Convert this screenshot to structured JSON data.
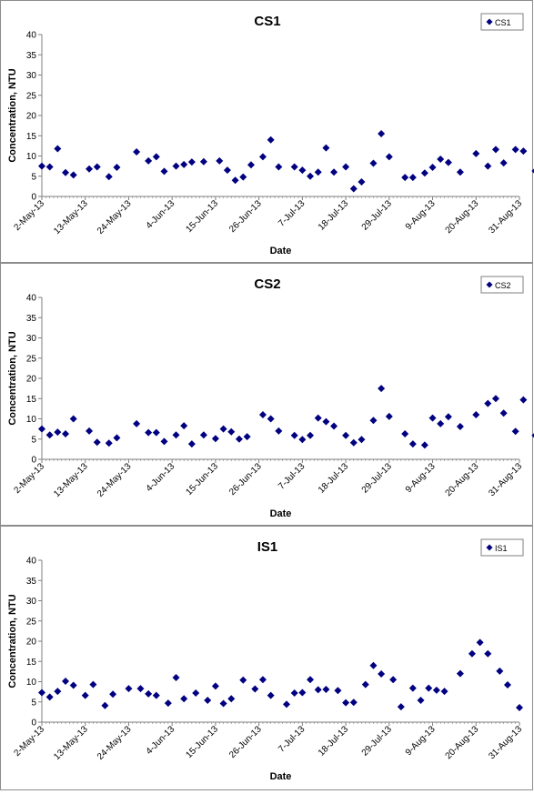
{
  "colors": {
    "marker": "#000080",
    "axis": "#7f7f7f",
    "text": "#000000",
    "frame": "#8c8c8c"
  },
  "chart_data": [
    {
      "type": "scatter",
      "title": "CS1",
      "xlabel": "Date",
      "ylabel": "Concentration, NTU",
      "ylim": [
        0,
        40
      ],
      "yticks": [
        "0",
        "5",
        "10",
        "15",
        "20",
        "25",
        "30",
        "35",
        "40"
      ],
      "xlim": [
        "2013-05-02",
        "2013-08-31"
      ],
      "xticks": [
        "2-May-13",
        "13-May-13",
        "24-May-13",
        "4-Jun-13",
        "15-Jun-13",
        "26-Jun-13",
        "7-Jul-13",
        "18-Jul-13",
        "29-Jul-13",
        "9-Aug-13",
        "20-Aug-13",
        "31-Aug-13"
      ],
      "grid": false,
      "legend_position": "top-right",
      "series": [
        {
          "name": "CS1",
          "points": [
            [
              "2013-05-02",
              7.5
            ],
            [
              "2013-05-04",
              7.3
            ],
            [
              "2013-05-06",
              11.8
            ],
            [
              "2013-05-08",
              5.9
            ],
            [
              "2013-05-10",
              5.3
            ],
            [
              "2013-05-14",
              6.8
            ],
            [
              "2013-05-16",
              7.3
            ],
            [
              "2013-05-19",
              4.9
            ],
            [
              "2013-05-21",
              7.2
            ],
            [
              "2013-05-26",
              11.0
            ],
            [
              "2013-05-29",
              8.8
            ],
            [
              "2013-05-31",
              9.8
            ],
            [
              "2013-06-02",
              6.2
            ],
            [
              "2013-06-05",
              7.5
            ],
            [
              "2013-06-07",
              7.9
            ],
            [
              "2013-06-09",
              8.5
            ],
            [
              "2013-06-12",
              8.6
            ],
            [
              "2013-06-16",
              8.8
            ],
            [
              "2013-06-18",
              6.5
            ],
            [
              "2013-06-20",
              4.0
            ],
            [
              "2013-06-22",
              4.8
            ],
            [
              "2013-06-24",
              7.8
            ],
            [
              "2013-06-27",
              9.8
            ],
            [
              "2013-06-29",
              14.0
            ],
            [
              "2013-07-01",
              7.3
            ],
            [
              "2013-07-05",
              7.3
            ],
            [
              "2013-07-07",
              6.5
            ],
            [
              "2013-07-09",
              5.0
            ],
            [
              "2013-07-11",
              6.0
            ],
            [
              "2013-07-13",
              12.0
            ],
            [
              "2013-07-15",
              6.0
            ],
            [
              "2013-07-18",
              7.3
            ],
            [
              "2013-07-20",
              1.9
            ],
            [
              "2013-07-22",
              3.6
            ],
            [
              "2013-07-25",
              8.2
            ],
            [
              "2013-07-27",
              15.5
            ],
            [
              "2013-07-29",
              9.8
            ],
            [
              "2013-08-02",
              4.7
            ],
            [
              "2013-08-04",
              4.7
            ],
            [
              "2013-08-07",
              5.8
            ],
            [
              "2013-08-09",
              7.2
            ],
            [
              "2013-08-11",
              9.2
            ],
            [
              "2013-08-13",
              8.4
            ],
            [
              "2013-08-16",
              6.0
            ],
            [
              "2013-08-20",
              10.6
            ],
            [
              "2013-08-23",
              7.5
            ],
            [
              "2013-08-25",
              11.6
            ],
            [
              "2013-08-27",
              8.3
            ],
            [
              "2013-08-30",
              11.6
            ],
            [
              "2013-09-01",
              11.2
            ],
            [
              "2013-09-04",
              6.3
            ]
          ]
        }
      ]
    },
    {
      "type": "scatter",
      "title": "CS2",
      "xlabel": "Date",
      "ylabel": "Concentration, NTU",
      "ylim": [
        0,
        40
      ],
      "yticks": [
        "0",
        "5",
        "10",
        "15",
        "20",
        "25",
        "30",
        "35",
        "40"
      ],
      "xlim": [
        "2013-05-02",
        "2013-08-31"
      ],
      "xticks": [
        "2-May-13",
        "13-May-13",
        "24-May-13",
        "4-Jun-13",
        "15-Jun-13",
        "26-Jun-13",
        "7-Jul-13",
        "18-Jul-13",
        "29-Jul-13",
        "9-Aug-13",
        "20-Aug-13",
        "31-Aug-13"
      ],
      "grid": false,
      "legend_position": "top-right",
      "series": [
        {
          "name": "CS2",
          "points": [
            [
              "2013-05-02",
              7.5
            ],
            [
              "2013-05-04",
              6.0
            ],
            [
              "2013-05-06",
              6.7
            ],
            [
              "2013-05-08",
              6.3
            ],
            [
              "2013-05-10",
              10.0
            ],
            [
              "2013-05-14",
              7.0
            ],
            [
              "2013-05-16",
              4.2
            ],
            [
              "2013-05-19",
              4.0
            ],
            [
              "2013-05-21",
              5.3
            ],
            [
              "2013-05-26",
              8.8
            ],
            [
              "2013-05-29",
              6.6
            ],
            [
              "2013-05-31",
              6.6
            ],
            [
              "2013-06-02",
              4.4
            ],
            [
              "2013-06-05",
              6.0
            ],
            [
              "2013-06-07",
              8.3
            ],
            [
              "2013-06-09",
              3.8
            ],
            [
              "2013-06-12",
              6.0
            ],
            [
              "2013-06-15",
              5.1
            ],
            [
              "2013-06-17",
              7.5
            ],
            [
              "2013-06-19",
              6.8
            ],
            [
              "2013-06-21",
              5.0
            ],
            [
              "2013-06-23",
              5.6
            ],
            [
              "2013-06-27",
              11.0
            ],
            [
              "2013-06-29",
              10.0
            ],
            [
              "2013-07-01",
              7.0
            ],
            [
              "2013-07-05",
              5.9
            ],
            [
              "2013-07-07",
              4.9
            ],
            [
              "2013-07-09",
              5.9
            ],
            [
              "2013-07-11",
              10.2
            ],
            [
              "2013-07-13",
              9.3
            ],
            [
              "2013-07-15",
              8.2
            ],
            [
              "2013-07-18",
              5.9
            ],
            [
              "2013-07-20",
              4.1
            ],
            [
              "2013-07-22",
              4.9
            ],
            [
              "2013-07-25",
              9.6
            ],
            [
              "2013-07-27",
              17.5
            ],
            [
              "2013-07-29",
              10.6
            ],
            [
              "2013-08-02",
              6.3
            ],
            [
              "2013-08-04",
              3.8
            ],
            [
              "2013-08-07",
              3.5
            ],
            [
              "2013-08-09",
              10.2
            ],
            [
              "2013-08-11",
              8.8
            ],
            [
              "2013-08-13",
              10.5
            ],
            [
              "2013-08-16",
              8.1
            ],
            [
              "2013-08-20",
              11.0
            ],
            [
              "2013-08-23",
              13.8
            ],
            [
              "2013-08-25",
              15.0
            ],
            [
              "2013-08-27",
              11.4
            ],
            [
              "2013-08-30",
              6.9
            ],
            [
              "2013-09-01",
              14.7
            ],
            [
              "2013-09-04",
              5.9
            ]
          ]
        }
      ]
    },
    {
      "type": "scatter",
      "title": "IS1",
      "xlabel": "Date",
      "ylabel": "Concentration, NTU",
      "ylim": [
        0,
        40
      ],
      "yticks": [
        "0",
        "5",
        "10",
        "15",
        "20",
        "25",
        "30",
        "35",
        "40"
      ],
      "xlim": [
        "2013-05-02",
        "2013-08-31"
      ],
      "xticks": [
        "2-May-13",
        "13-May-13",
        "24-May-13",
        "4-Jun-13",
        "15-Jun-13",
        "26-Jun-13",
        "7-Jul-13",
        "18-Jul-13",
        "29-Jul-13",
        "9-Aug-13",
        "20-Aug-13",
        "31-Aug-13"
      ],
      "grid": false,
      "legend_position": "top-right",
      "series": [
        {
          "name": "IS1",
          "points": [
            [
              "2013-05-02",
              7.3
            ],
            [
              "2013-05-04",
              6.2
            ],
            [
              "2013-05-06",
              7.6
            ],
            [
              "2013-05-08",
              10.1
            ],
            [
              "2013-05-10",
              9.1
            ],
            [
              "2013-05-13",
              6.6
            ],
            [
              "2013-05-15",
              9.3
            ],
            [
              "2013-05-18",
              4.1
            ],
            [
              "2013-05-20",
              6.9
            ],
            [
              "2013-05-24",
              8.3
            ],
            [
              "2013-05-27",
              8.3
            ],
            [
              "2013-05-29",
              7.0
            ],
            [
              "2013-05-31",
              6.6
            ],
            [
              "2013-06-03",
              4.7
            ],
            [
              "2013-06-05",
              11.0
            ],
            [
              "2013-06-07",
              5.8
            ],
            [
              "2013-06-10",
              7.2
            ],
            [
              "2013-06-13",
              5.4
            ],
            [
              "2013-06-15",
              8.9
            ],
            [
              "2013-06-17",
              4.6
            ],
            [
              "2013-06-19",
              5.8
            ],
            [
              "2013-06-22",
              10.4
            ],
            [
              "2013-06-25",
              8.2
            ],
            [
              "2013-06-27",
              10.5
            ],
            [
              "2013-06-29",
              6.6
            ],
            [
              "2013-07-03",
              4.4
            ],
            [
              "2013-07-05",
              7.2
            ],
            [
              "2013-07-07",
              7.3
            ],
            [
              "2013-07-09",
              10.5
            ],
            [
              "2013-07-11",
              8.0
            ],
            [
              "2013-07-13",
              8.1
            ],
            [
              "2013-07-16",
              7.8
            ],
            [
              "2013-07-18",
              4.8
            ],
            [
              "2013-07-20",
              4.9
            ],
            [
              "2013-07-23",
              9.3
            ],
            [
              "2013-07-25",
              14.0
            ],
            [
              "2013-07-27",
              11.9
            ],
            [
              "2013-07-30",
              10.5
            ],
            [
              "2013-08-01",
              3.8
            ],
            [
              "2013-08-04",
              8.4
            ],
            [
              "2013-08-06",
              5.4
            ],
            [
              "2013-08-08",
              8.4
            ],
            [
              "2013-08-10",
              7.9
            ],
            [
              "2013-08-12",
              7.6
            ],
            [
              "2013-08-16",
              12.0
            ],
            [
              "2013-08-19",
              16.9
            ],
            [
              "2013-08-21",
              19.7
            ],
            [
              "2013-08-23",
              16.9
            ],
            [
              "2013-08-26",
              12.6
            ],
            [
              "2013-08-28",
              9.2
            ],
            [
              "2013-08-31",
              3.6
            ]
          ]
        }
      ]
    }
  ]
}
